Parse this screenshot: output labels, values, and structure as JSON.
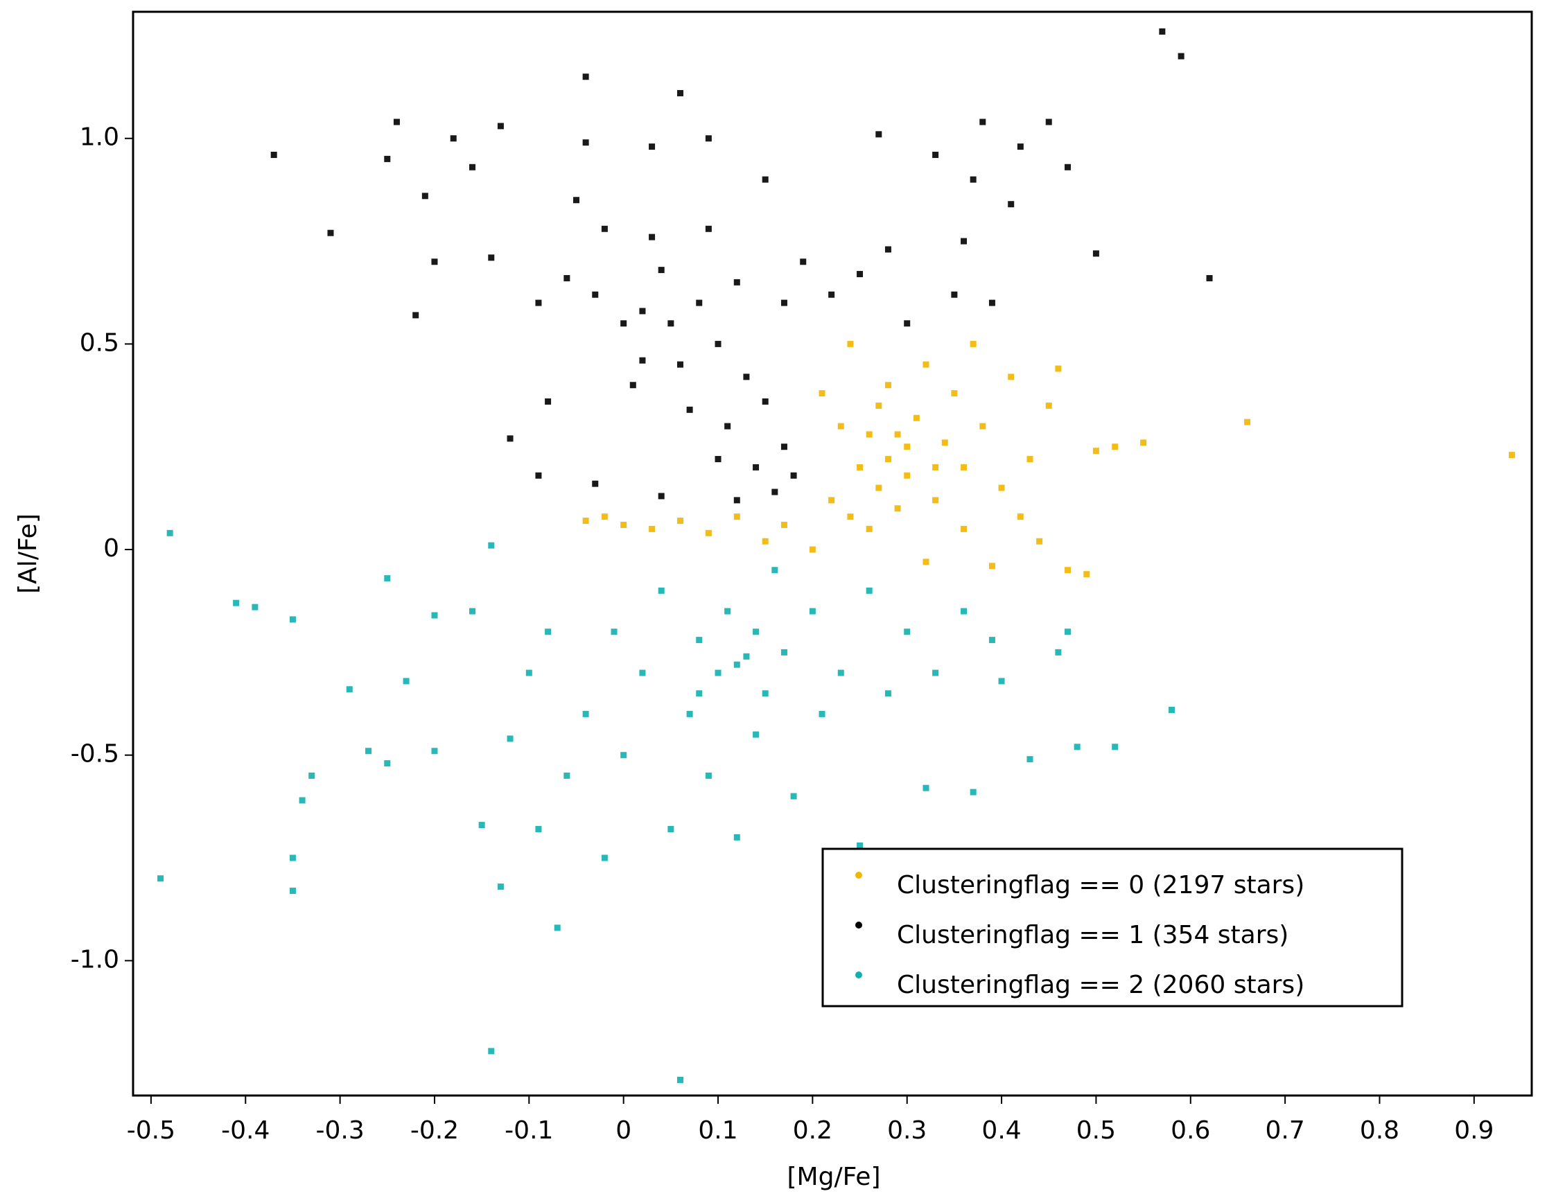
{
  "chart_data": {
    "type": "scatter",
    "x_label": "[Mg/Fe]",
    "y_label": "[Al/Fe]",
    "xlim": [
      -0.519,
      0.961
    ],
    "ylim": [
      -1.328,
      1.308
    ],
    "xticks": [
      -0.5,
      -0.4,
      -0.3,
      -0.2,
      -0.1,
      0,
      0.1,
      0.2,
      0.3,
      0.4,
      0.5,
      0.6,
      0.7,
      0.8,
      0.9
    ],
    "yticks": [
      {
        "value": -1,
        "label": "-1.0"
      },
      -0.5,
      0,
      0.5,
      {
        "value": 1,
        "label": "1.0"
      }
    ],
    "legend": "lower right",
    "series": [
      {
        "name": "Clusteringflag == 0 (2197 stars)",
        "color": "#f2b600",
        "x": [
          -0.04,
          -0.02,
          0.0,
          0.03,
          0.06,
          0.09,
          0.12,
          0.15,
          0.17,
          0.2,
          0.21,
          0.22,
          0.23,
          0.24,
          0.25,
          0.26,
          0.26,
          0.27,
          0.28,
          0.28,
          0.29,
          0.3,
          0.3,
          0.31,
          0.32,
          0.32,
          0.33,
          0.34,
          0.35,
          0.36,
          0.36,
          0.37,
          0.38,
          0.39,
          0.4,
          0.41,
          0.42,
          0.43,
          0.44,
          0.45,
          0.46,
          0.47,
          0.49,
          0.5,
          0.52,
          0.55,
          0.66,
          0.94,
          0.27,
          0.29,
          0.24,
          0.33
        ],
        "values": [
          0.07,
          0.08,
          0.06,
          0.05,
          0.07,
          0.04,
          0.08,
          0.02,
          0.06,
          0.0,
          0.38,
          0.12,
          0.3,
          0.5,
          0.2,
          0.05,
          0.28,
          0.15,
          0.22,
          0.4,
          0.1,
          0.25,
          0.18,
          0.32,
          -0.03,
          0.45,
          0.12,
          0.26,
          0.38,
          0.05,
          0.2,
          0.5,
          0.3,
          -0.04,
          0.15,
          0.42,
          0.08,
          0.22,
          0.02,
          0.35,
          0.44,
          -0.05,
          -0.06,
          0.24,
          0.25,
          0.26,
          0.31,
          0.23,
          0.35,
          0.28,
          0.08,
          0.2
        ]
      },
      {
        "name": "Clusteringflag == 1 (354 stars)",
        "color": "#000000",
        "x": [
          -0.37,
          -0.31,
          -0.22,
          -0.24,
          -0.25,
          -0.2,
          -0.21,
          -0.18,
          -0.16,
          -0.13,
          -0.12,
          -0.14,
          -0.09,
          -0.08,
          -0.09,
          -0.06,
          -0.05,
          -0.04,
          -0.04,
          -0.03,
          -0.03,
          -0.02,
          0.0,
          0.01,
          0.02,
          0.03,
          0.03,
          0.04,
          0.04,
          0.05,
          0.06,
          0.06,
          0.07,
          0.08,
          0.09,
          0.09,
          0.1,
          0.1,
          0.11,
          0.12,
          0.12,
          0.13,
          0.14,
          0.15,
          0.15,
          0.16,
          0.17,
          0.17,
          0.18,
          0.19,
          0.22,
          0.25,
          0.27,
          0.28,
          0.3,
          0.33,
          0.35,
          0.36,
          0.37,
          0.38,
          0.39,
          0.41,
          0.42,
          0.45,
          0.47,
          0.5,
          0.57,
          0.59,
          0.62,
          0.02
        ],
        "values": [
          0.96,
          0.77,
          0.57,
          1.04,
          0.95,
          0.7,
          0.86,
          1.0,
          0.93,
          1.03,
          0.27,
          0.71,
          0.18,
          0.36,
          0.6,
          0.66,
          0.85,
          1.15,
          0.99,
          0.62,
          0.16,
          0.78,
          0.55,
          0.4,
          0.58,
          0.76,
          0.98,
          0.68,
          0.13,
          0.55,
          0.45,
          1.11,
          0.34,
          0.6,
          0.78,
          1.0,
          0.5,
          0.22,
          0.3,
          0.65,
          0.12,
          0.42,
          0.2,
          0.9,
          0.36,
          0.14,
          0.25,
          0.6,
          0.18,
          0.7,
          0.62,
          0.67,
          1.01,
          0.73,
          0.55,
          0.96,
          0.62,
          0.75,
          0.9,
          1.04,
          0.6,
          0.84,
          0.98,
          1.04,
          0.93,
          0.72,
          1.26,
          1.2,
          0.66,
          0.46
        ]
      },
      {
        "name": "Clusteringflag == 2 (2060 stars)",
        "color": "#11b0b0",
        "x": [
          -0.49,
          -0.48,
          -0.41,
          -0.39,
          -0.35,
          -0.35,
          -0.35,
          -0.34,
          -0.33,
          -0.29,
          -0.27,
          -0.25,
          -0.25,
          -0.23,
          -0.2,
          -0.2,
          -0.16,
          -0.15,
          -0.14,
          -0.14,
          -0.13,
          -0.12,
          -0.1,
          -0.09,
          -0.08,
          -0.07,
          -0.06,
          -0.04,
          -0.02,
          -0.01,
          0.0,
          0.02,
          0.04,
          0.05,
          0.06,
          0.07,
          0.08,
          0.09,
          0.1,
          0.11,
          0.12,
          0.13,
          0.14,
          0.15,
          0.16,
          0.17,
          0.18,
          0.2,
          0.21,
          0.23,
          0.25,
          0.26,
          0.28,
          0.3,
          0.32,
          0.33,
          0.36,
          0.37,
          0.39,
          0.4,
          0.43,
          0.46,
          0.47,
          0.48,
          0.52,
          0.58,
          0.12,
          0.08,
          0.14
        ],
        "values": [
          -0.8,
          0.04,
          -0.13,
          -0.14,
          -0.17,
          -0.83,
          -0.75,
          -0.61,
          -0.55,
          -0.34,
          -0.49,
          -0.52,
          -0.07,
          -0.32,
          -0.49,
          -0.16,
          -0.15,
          -0.67,
          -1.22,
          0.01,
          -0.82,
          -0.46,
          -0.3,
          -0.68,
          -0.2,
          -0.92,
          -0.55,
          -0.4,
          -0.75,
          -0.2,
          -0.5,
          -0.3,
          -0.1,
          -0.68,
          -1.29,
          -0.4,
          -0.22,
          -0.55,
          -0.3,
          -0.15,
          -0.7,
          -0.26,
          -0.45,
          -0.35,
          -0.05,
          -0.25,
          -0.6,
          -0.15,
          -0.4,
          -0.3,
          -0.72,
          -0.1,
          -0.35,
          -0.2,
          -0.58,
          -0.3,
          -0.15,
          -0.59,
          -0.22,
          -0.32,
          -0.51,
          -0.25,
          -0.2,
          -0.48,
          -0.48,
          -0.39,
          -0.28,
          -0.35,
          -0.2
        ]
      }
    ]
  }
}
